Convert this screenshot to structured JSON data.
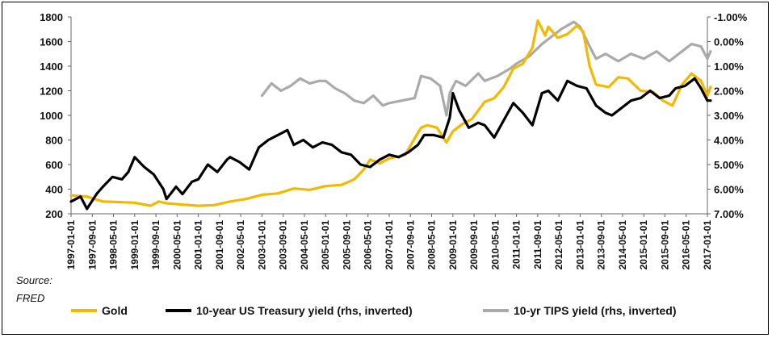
{
  "chart_data": {
    "type": "line",
    "title": "",
    "source_label": "Source:",
    "source_name": "FRED",
    "grid": false,
    "legend_position": "bottom",
    "left_axis": {
      "ylim": [
        200,
        1800
      ],
      "ticks": [
        "200",
        "400",
        "600",
        "800",
        "1000",
        "1200",
        "1400",
        "1600",
        "1800"
      ]
    },
    "right_axis": {
      "inverted": true,
      "ylim": [
        -1.0,
        7.0
      ],
      "ticks": [
        "-1.00%",
        "0.00%",
        "1.00%",
        "2.00%",
        "3.00%",
        "4.00%",
        "5.00%",
        "6.00%",
        "7.00%"
      ]
    },
    "x_ticks": [
      "1997-01-01",
      "1997-09-01",
      "1998-05-01",
      "1999-01-01",
      "1999-09-01",
      "2000-05-01",
      "2001-01-01",
      "2001-09-01",
      "2002-05-01",
      "2003-01-01",
      "2003-09-01",
      "2004-05-01",
      "2005-01-01",
      "2005-09-01",
      "2006-05-01",
      "2007-01-01",
      "2007-09-01",
      "2008-05-01",
      "2009-01-01",
      "2009-09-01",
      "2010-05-01",
      "2011-01-01",
      "2011-09-01",
      "2012-05-01",
      "2013-01-01",
      "2013-09-01",
      "2014-05-01",
      "2015-01-01",
      "2015-09-01",
      "2016-05-01",
      "2017-01-01"
    ],
    "series": [
      {
        "name": "Gold",
        "axis": "left",
        "color": "#F5B800",
        "x": [
          1997.0,
          1997.5,
          1998.0,
          1998.5,
          1999.0,
          1999.5,
          1999.75,
          2000.0,
          2000.5,
          2001.0,
          2001.5,
          2002.0,
          2002.5,
          2003.0,
          2003.5,
          2004.0,
          2004.5,
          2005.0,
          2005.5,
          2005.9,
          2006.2,
          2006.4,
          2006.7,
          2007.0,
          2007.5,
          2008.0,
          2008.2,
          2008.5,
          2008.8,
          2009.0,
          2009.3,
          2009.6,
          2010.0,
          2010.3,
          2010.6,
          2010.9,
          2011.2,
          2011.5,
          2011.67,
          2011.9,
          2012.0,
          2012.3,
          2012.6,
          2012.9,
          2013.1,
          2013.3,
          2013.5,
          2013.9,
          2014.2,
          2014.5,
          2014.9,
          2015.3,
          2015.6,
          2015.9,
          2016.2,
          2016.5,
          2016.8,
          2017.0,
          2017.1
        ],
        "values": [
          350,
          340,
          300,
          295,
          290,
          265,
          300,
          285,
          275,
          265,
          270,
          300,
          320,
          355,
          365,
          405,
          395,
          425,
          435,
          480,
          560,
          640,
          610,
          650,
          680,
          900,
          920,
          900,
          780,
          870,
          930,
          970,
          1110,
          1140,
          1230,
          1380,
          1420,
          1550,
          1770,
          1650,
          1720,
          1630,
          1660,
          1730,
          1680,
          1400,
          1250,
          1230,
          1310,
          1300,
          1200,
          1190,
          1120,
          1080,
          1250,
          1340,
          1280,
          1160,
          1230
        ]
      },
      {
        "name": "10-year US Treasury yield (rhs, inverted)",
        "axis": "right",
        "color": "#000000",
        "x": [
          1997.0,
          1997.3,
          1997.5,
          1997.8,
          1998.0,
          1998.3,
          1998.6,
          1998.8,
          1999.0,
          1999.3,
          1999.6,
          1999.9,
          2000.0,
          2000.3,
          2000.5,
          2000.8,
          2001.0,
          2001.3,
          2001.6,
          2001.9,
          2002.0,
          2002.3,
          2002.6,
          2002.9,
          2003.2,
          2003.5,
          2003.8,
          2004.0,
          2004.3,
          2004.6,
          2004.9,
          2005.2,
          2005.5,
          2005.8,
          2006.1,
          2006.4,
          2006.7,
          2007.0,
          2007.3,
          2007.6,
          2007.9,
          2008.1,
          2008.4,
          2008.7,
          2008.9,
          2009.0,
          2009.2,
          2009.5,
          2009.8,
          2010.0,
          2010.3,
          2010.6,
          2010.9,
          2011.2,
          2011.5,
          2011.8,
          2012.0,
          2012.3,
          2012.6,
          2012.9,
          2013.2,
          2013.5,
          2013.8,
          2014.0,
          2014.3,
          2014.6,
          2014.9,
          2015.2,
          2015.5,
          2015.8,
          2016.0,
          2016.3,
          2016.6,
          2016.8,
          2017.0,
          2017.1
        ],
        "values": [
          6.5,
          6.3,
          6.8,
          6.2,
          5.9,
          5.5,
          5.6,
          5.3,
          4.7,
          5.1,
          5.4,
          6.0,
          6.4,
          5.9,
          6.2,
          5.7,
          5.6,
          5.0,
          5.3,
          4.8,
          4.7,
          4.9,
          5.2,
          4.3,
          4.0,
          3.8,
          3.6,
          4.2,
          4.0,
          4.3,
          4.1,
          4.2,
          4.5,
          4.6,
          5.0,
          5.1,
          4.8,
          4.6,
          4.7,
          4.5,
          4.2,
          3.8,
          3.8,
          3.9,
          3.1,
          2.1,
          2.8,
          3.5,
          3.3,
          3.4,
          3.9,
          3.2,
          2.5,
          2.9,
          3.4,
          2.1,
          2.0,
          2.4,
          1.6,
          1.8,
          1.9,
          2.6,
          2.9,
          3.0,
          2.7,
          2.4,
          2.3,
          2.0,
          2.3,
          2.2,
          1.9,
          1.8,
          1.5,
          1.9,
          2.4,
          2.4
        ]
      },
      {
        "name": "10-yr TIPS yield (rhs, inverted)",
        "axis": "right",
        "color": "#AAAAAA",
        "x": [
          2003.0,
          2003.3,
          2003.6,
          2003.9,
          2004.2,
          2004.5,
          2004.8,
          2005.0,
          2005.3,
          2005.6,
          2005.9,
          2006.2,
          2006.5,
          2006.8,
          2007.0,
          2007.4,
          2007.8,
          2008.0,
          2008.3,
          2008.6,
          2008.8,
          2008.9,
          2009.1,
          2009.4,
          2009.8,
          2010.0,
          2010.4,
          2010.8,
          2011.0,
          2011.4,
          2011.8,
          2012.0,
          2012.4,
          2012.8,
          2013.0,
          2013.3,
          2013.5,
          2013.8,
          2014.2,
          2014.6,
          2015.0,
          2015.4,
          2015.8,
          2016.2,
          2016.5,
          2016.8,
          2017.0,
          2017.1
        ],
        "values": [
          2.2,
          1.7,
          2.0,
          1.8,
          1.5,
          1.7,
          1.6,
          1.6,
          1.9,
          2.1,
          2.4,
          2.5,
          2.2,
          2.6,
          2.5,
          2.4,
          2.3,
          1.4,
          1.5,
          1.8,
          3.0,
          2.1,
          1.6,
          1.8,
          1.3,
          1.6,
          1.4,
          1.1,
          0.9,
          0.6,
          0.1,
          -0.1,
          -0.5,
          -0.8,
          -0.6,
          0.2,
          0.7,
          0.5,
          0.8,
          0.5,
          0.7,
          0.4,
          0.8,
          0.4,
          0.1,
          0.2,
          0.7,
          0.4
        ]
      }
    ]
  }
}
